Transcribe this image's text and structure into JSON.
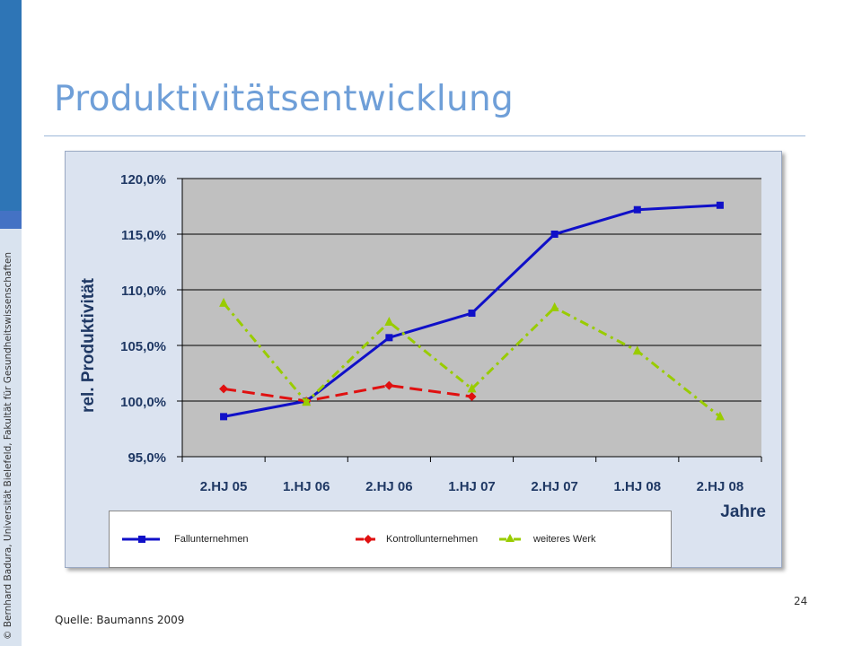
{
  "sidebar": {
    "copyright": "© Bernhard Badura, Universität Bielefeld, Fakultät für Gesundheitswissenschaften"
  },
  "slide": {
    "title": "Produktivitätsentwicklung",
    "page_number": "24",
    "source": "Quelle: Baumanns 2009"
  },
  "colors": {
    "title": "#6f9fd8",
    "series_fall": "#1010c8",
    "series_kontroll": "#e01010",
    "series_werk": "#99cc00",
    "plot_bg": "#c0c0c0",
    "frame_bg": "#dbe3f0"
  },
  "chart_data": {
    "type": "line",
    "title": "",
    "xlabel": "Jahre",
    "ylabel": "rel. Produktivität",
    "categories": [
      "2.HJ 05",
      "1.HJ 06",
      "2.HJ 06",
      "1.HJ 07",
      "2.HJ 07",
      "1.HJ 08",
      "2.HJ 08"
    ],
    "ylim": [
      95.0,
      120.0
    ],
    "yticks": [
      95.0,
      100.0,
      105.0,
      110.0,
      115.0,
      120.0
    ],
    "ytick_labels": [
      "95,0%",
      "100,0%",
      "105,0%",
      "110,0%",
      "115,0%",
      "120,0%"
    ],
    "grid": "horizontal",
    "legend_position": "bottom",
    "series": [
      {
        "name": "Fallunternehmen",
        "values": [
          98.6,
          100.0,
          105.7,
          107.9,
          115.0,
          117.2,
          117.6
        ],
        "color": "#1010c8",
        "style": "solid",
        "marker": "square"
      },
      {
        "name": "Kontrollunternehmen",
        "values": [
          101.1,
          100.0,
          101.4,
          100.4,
          null,
          null,
          null
        ],
        "color": "#e01010",
        "style": "dashed",
        "marker": "diamond"
      },
      {
        "name": "weiteres Werk",
        "values": [
          108.8,
          99.9,
          107.1,
          101.1,
          108.4,
          104.5,
          98.6
        ],
        "color": "#99cc00",
        "style": "dash-dot",
        "marker": "triangle"
      }
    ]
  }
}
